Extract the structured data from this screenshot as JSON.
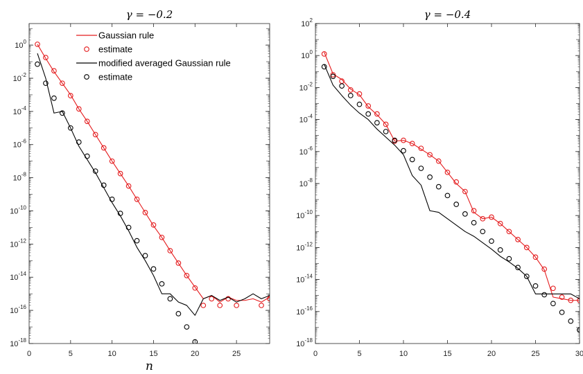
{
  "chart_data": [
    {
      "type": "line",
      "title": "γ = −0.2",
      "xlabel": "n",
      "ylabel": "",
      "xlim": [
        0,
        29
      ],
      "ylim_log10": [
        -18,
        1.3
      ],
      "yscale": "log",
      "x_ticks": [
        0,
        5,
        10,
        15,
        20,
        25
      ],
      "y_tick_exponents": [
        0,
        -2,
        -4,
        -6,
        -8,
        -10,
        -12,
        -14,
        -16,
        -18
      ],
      "legend": {
        "placement": "top-center",
        "entries": [
          "Gaussian rule",
          "estimate",
          "modified averaged Gaussian rule",
          "estimate"
        ]
      },
      "series": [
        {
          "name": "Gaussian rule",
          "kind": "line",
          "color": "#e41a1c",
          "x": [
            1,
            2,
            3,
            4,
            5,
            6,
            7,
            8,
            9,
            10,
            11,
            12,
            13,
            14,
            15,
            16,
            17,
            18,
            19,
            20,
            21,
            22,
            23,
            24,
            25,
            26,
            27,
            28,
            29
          ],
          "y_log10": [
            0.05,
            -0.8,
            -1.6,
            -2.3,
            -3.0,
            -3.85,
            -4.6,
            -5.4,
            -6.2,
            -7.0,
            -7.75,
            -8.5,
            -9.3,
            -10.1,
            -10.9,
            -11.6,
            -12.4,
            -13.15,
            -13.9,
            -14.6,
            -15.3,
            -15.1,
            -15.5,
            -15.2,
            -15.4,
            -15.4,
            -15.3,
            -15.5,
            -15.2
          ]
        },
        {
          "name": "estimate",
          "kind": "markers",
          "color": "#e41a1c",
          "x": [
            1,
            2,
            3,
            4,
            5,
            6,
            7,
            8,
            9,
            10,
            11,
            12,
            13,
            14,
            15,
            16,
            17,
            18,
            19,
            20,
            21,
            22,
            23,
            24,
            25,
            28,
            29
          ],
          "y_log10": [
            0.05,
            -0.75,
            -1.55,
            -2.3,
            -3.05,
            -3.85,
            -4.6,
            -5.4,
            -6.2,
            -7.0,
            -7.75,
            -8.5,
            -9.3,
            -10.1,
            -10.85,
            -11.6,
            -12.4,
            -13.15,
            -13.9,
            -14.65,
            -15.7,
            -15.3,
            -15.7,
            -15.3,
            -15.7,
            -15.7,
            -15.3
          ]
        },
        {
          "name": "modified averaged Gaussian rule",
          "kind": "line",
          "color": "#000000",
          "x": [
            1,
            2,
            3,
            4,
            5,
            6,
            7,
            8,
            9,
            10,
            11,
            12,
            13,
            14,
            15,
            16,
            17,
            18,
            19,
            20,
            21,
            22,
            23,
            24,
            25,
            26,
            27,
            28,
            29
          ],
          "y_log10": [
            -0.5,
            -2.0,
            -4.1,
            -4.0,
            -5.0,
            -6.1,
            -6.9,
            -7.7,
            -8.6,
            -9.5,
            -10.3,
            -11.2,
            -12.2,
            -13.0,
            -13.9,
            -15.0,
            -15.0,
            -15.5,
            -15.7,
            -16.3,
            -15.3,
            -15.1,
            -15.4,
            -15.2,
            -15.5,
            -15.3,
            -15.0,
            -15.3,
            -15.1
          ]
        },
        {
          "name": "estimate",
          "kind": "markers",
          "color": "#000000",
          "x": [
            1,
            2,
            3,
            4,
            5,
            6,
            7,
            8,
            9,
            10,
            11,
            12,
            13,
            14,
            15,
            16,
            17,
            18,
            19,
            20,
            21
          ],
          "y_log10": [
            -1.15,
            -2.3,
            -3.2,
            -4.1,
            -5.0,
            -5.85,
            -6.7,
            -7.6,
            -8.45,
            -9.3,
            -10.15,
            -11.0,
            -11.8,
            -12.7,
            -13.5,
            -14.4,
            -15.3,
            -16.2,
            -17.0,
            -17.9,
            -18.1
          ]
        }
      ]
    },
    {
      "type": "line",
      "title": "γ = −0.4",
      "xlabel": "",
      "ylabel": "",
      "xlim": [
        0,
        30
      ],
      "ylim_log10": [
        -18,
        2
      ],
      "yscale": "log",
      "x_ticks": [
        0,
        5,
        10,
        15,
        20,
        25,
        30
      ],
      "y_tick_exponents": [
        2,
        0,
        -2,
        -4,
        -6,
        -8,
        -10,
        -12,
        -14,
        -16,
        -18
      ],
      "series": [
        {
          "name": "Gaussian rule",
          "kind": "line",
          "color": "#e41a1c",
          "x": [
            1,
            2,
            3,
            4,
            5,
            6,
            7,
            8,
            9,
            10,
            11,
            12,
            13,
            14,
            15,
            16,
            17,
            18,
            19,
            20,
            21,
            22,
            23,
            24,
            25,
            26,
            27,
            28,
            29,
            30
          ],
          "y_log10": [
            0.2,
            -1.15,
            -1.5,
            -2.1,
            -2.45,
            -3.2,
            -3.7,
            -4.3,
            -5.35,
            -5.3,
            -5.5,
            -5.85,
            -6.2,
            -6.6,
            -7.3,
            -8.0,
            -8.5,
            -9.8,
            -10.2,
            -10.1,
            -10.5,
            -11.0,
            -11.5,
            -12.0,
            -12.6,
            -13.4,
            -15.1,
            -15.2,
            -15.3,
            -15.3
          ]
        },
        {
          "name": "estimate",
          "kind": "markers",
          "color": "#e41a1c",
          "x": [
            1,
            2,
            3,
            4,
            5,
            6,
            7,
            8,
            9,
            10,
            11,
            12,
            13,
            14,
            15,
            16,
            17,
            18,
            19,
            20,
            21,
            22,
            23,
            24,
            25,
            26,
            27,
            28,
            29,
            30
          ],
          "y_log10": [
            0.1,
            -1.2,
            -1.6,
            -2.15,
            -2.4,
            -3.15,
            -3.65,
            -4.3,
            -5.35,
            -5.3,
            -5.5,
            -5.8,
            -6.2,
            -6.6,
            -7.3,
            -7.9,
            -8.5,
            -9.7,
            -10.2,
            -10.1,
            -10.5,
            -11.0,
            -11.5,
            -12.0,
            -12.6,
            -13.35,
            -14.55,
            -15.1,
            -15.3,
            -15.3
          ]
        },
        {
          "name": "modified averaged Gaussian rule",
          "kind": "line",
          "color": "#000000",
          "x": [
            1,
            2,
            3,
            4,
            5,
            6,
            7,
            8,
            9,
            10,
            11,
            12,
            13,
            14,
            15,
            16,
            17,
            18,
            19,
            20,
            21,
            22,
            23,
            24,
            25,
            26,
            27,
            28,
            29,
            30
          ],
          "y_log10": [
            -0.55,
            -1.85,
            -2.5,
            -3.1,
            -3.6,
            -4.0,
            -4.6,
            -5.1,
            -5.6,
            -6.2,
            -7.5,
            -8.1,
            -9.7,
            -9.8,
            -10.2,
            -10.6,
            -11.0,
            -11.3,
            -11.7,
            -12.1,
            -12.55,
            -12.9,
            -13.3,
            -13.8,
            -14.9,
            -14.9,
            -14.9,
            -14.9,
            -14.9,
            -15.2
          ]
        },
        {
          "name": "estimate",
          "kind": "markers",
          "color": "#000000",
          "x": [
            1,
            2,
            3,
            4,
            5,
            6,
            7,
            8,
            9,
            10,
            11,
            12,
            13,
            14,
            15,
            16,
            17,
            18,
            19,
            20,
            21,
            22,
            23,
            24,
            25,
            26,
            27,
            28,
            29,
            30
          ],
          "y_log10": [
            -0.7,
            -1.3,
            -1.9,
            -2.5,
            -3.05,
            -3.65,
            -4.2,
            -4.75,
            -5.3,
            -5.95,
            -6.5,
            -7.05,
            -7.6,
            -8.2,
            -8.75,
            -9.3,
            -9.9,
            -10.45,
            -11.0,
            -11.6,
            -12.15,
            -12.7,
            -13.25,
            -13.8,
            -14.4,
            -14.95,
            -15.5,
            -16.05,
            -16.6,
            -17.15
          ]
        }
      ]
    }
  ]
}
